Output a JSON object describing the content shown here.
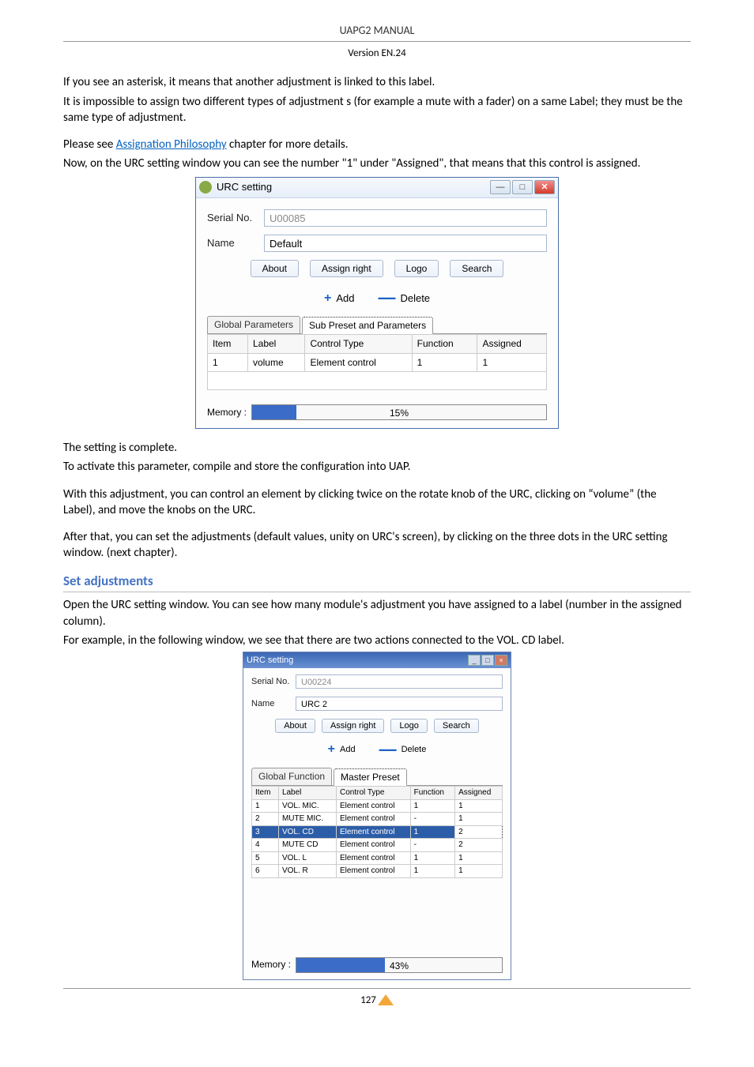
{
  "header": {
    "title": "UAPG2  MANUAL",
    "version": "Version EN.24"
  },
  "intro": {
    "line1": "If you see an asterisk, it means that another adjustment is linked to this label.",
    "line2": "It is impossible to assign two different types of adjustment s (for example a mute with a fader) on a same Label; they must be the same type of adjustment.",
    "line3a": "Please see ",
    "link": "Assignation Philosophy",
    "line3b": " chapter for more details.",
    "line4": "Now, on the URC setting window you can see the number \"1\" under \"Assigned\", that means that this control is assigned."
  },
  "win1": {
    "title": "URC setting",
    "serial_label": "Serial No.",
    "serial_value": "U00085",
    "name_label": "Name",
    "name_value": "Default",
    "buttons": {
      "about": "About",
      "assign": "Assign right",
      "logo": "Logo",
      "search": "Search"
    },
    "add": "Add",
    "delete": "Delete",
    "tab1": "Global Parameters",
    "tab2": "Sub Preset and Parameters",
    "cols": {
      "item": "Item",
      "label": "Label",
      "ctype": "Control Type",
      "func": "Function",
      "assigned": "Assigned"
    },
    "row": {
      "item": "1",
      "label": "volume",
      "ctype": "Element control",
      "func": "1",
      "assigned": "1"
    },
    "memory_label": "Memory :",
    "memory_pct": "15%",
    "memory_fill": 15
  },
  "mid": {
    "line1": "The setting is complete.",
    "line2": "To activate this parameter, compile and store the configuration into UAP.",
    "line3": "With this adjustment, you can control an element by clicking twice on the rotate knob of the URC, clicking on “volume” (the Label), and move the knobs on the URC.",
    "line4": "After that, you can set the adjustments (default values, unity on URC's screen), by clicking on the three dots in the URC setting window. (next chapter)."
  },
  "section2_title": "Set adjustments",
  "sec2": {
    "line1": "Open the URC setting window. You can see how many module's adjustment you have assigned to a label (number in the assigned column).",
    "line2": "For example, in the following window, we see that there are two actions connected to the VOL. CD label."
  },
  "win2": {
    "title": "URC setting",
    "serial_label": "Serial No.",
    "serial_value": "U00224",
    "name_label": "Name",
    "name_value": "URC 2",
    "buttons": {
      "about": "About",
      "assign": "Assign right",
      "logo": "Logo",
      "search": "Search"
    },
    "add": "Add",
    "delete": "Delete",
    "tab1": "Global Function",
    "tab2": "Master Preset",
    "cols": {
      "item": "Item",
      "label": "Label",
      "ctype": "Control Type",
      "func": "Function",
      "assigned": "Assigned"
    },
    "rows": [
      {
        "item": "1",
        "label": "VOL. MIC.",
        "ctype": "Element control",
        "func": "1",
        "assigned": "1",
        "sel": false
      },
      {
        "item": "2",
        "label": "MUTE MIC.",
        "ctype": "Element control",
        "func": "-",
        "assigned": "1",
        "sel": false
      },
      {
        "item": "3",
        "label": "VOL. CD",
        "ctype": "Element control",
        "func": "1",
        "assigned": "2",
        "sel": true
      },
      {
        "item": "4",
        "label": "MUTE CD",
        "ctype": "Element control",
        "func": "-",
        "assigned": "2",
        "sel": false
      },
      {
        "item": "5",
        "label": "VOL. L",
        "ctype": "Element control",
        "func": "1",
        "assigned": "1",
        "sel": false
      },
      {
        "item": "6",
        "label": "VOL. R",
        "ctype": "Element control",
        "func": "1",
        "assigned": "1",
        "sel": false
      }
    ],
    "memory_label": "Memory :",
    "memory_pct": "43%",
    "memory_fill": 43
  },
  "page_number": "127"
}
